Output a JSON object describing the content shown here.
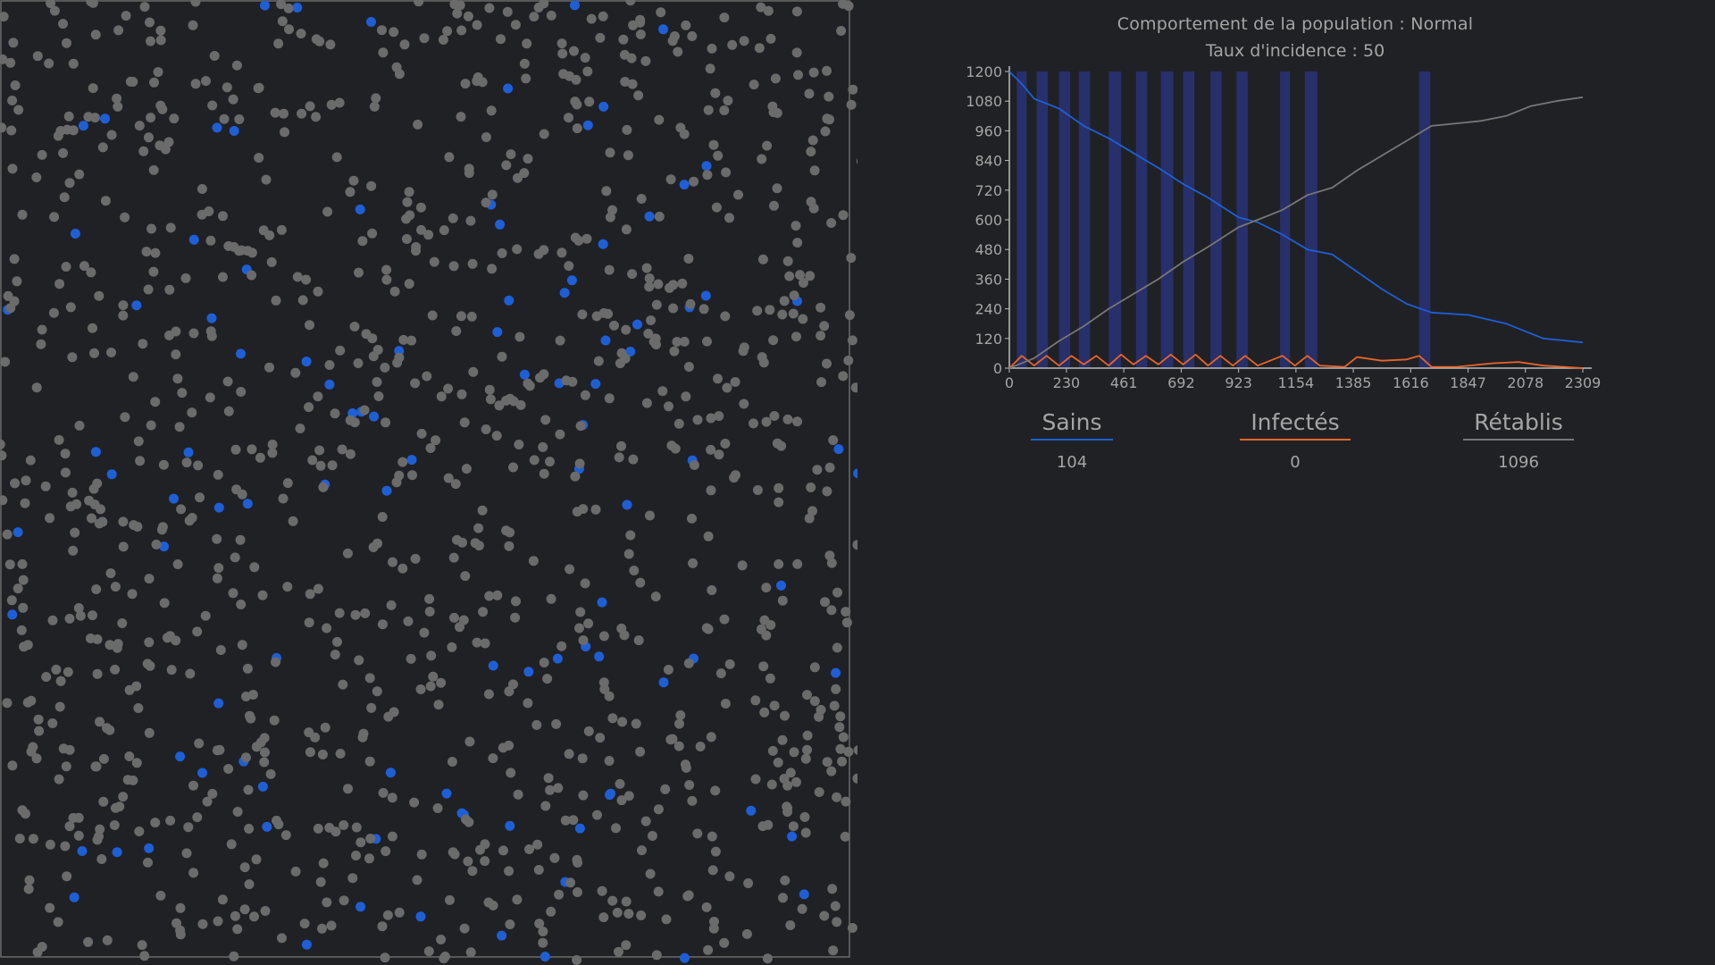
{
  "header": {
    "title": "Comportement de la population : Normal",
    "subtitle": "Taux d'incidence : 50"
  },
  "legend": [
    {
      "label": "Sains",
      "value": "104",
      "color": "#1e5fd6"
    },
    {
      "label": "Infectés",
      "value": "0",
      "color": "#e8642a"
    },
    {
      "label": "Rétablis",
      "value": "1096",
      "color": "#777777"
    }
  ],
  "colors": {
    "background": "#202125",
    "dot_default": "#6b6b6b",
    "dot_healthy": "#1e5fd6",
    "band": "#27306a"
  },
  "simulation": {
    "population_total": 1200,
    "healthy_visible": 104,
    "recovered_visible": 1096
  },
  "chart_data": {
    "type": "line",
    "title": "",
    "xlabel": "",
    "ylabel": "",
    "xlim": [
      0,
      2309
    ],
    "ylim": [
      0,
      1200
    ],
    "x_ticks": [
      "0",
      "230",
      "461",
      "692",
      "923",
      "1154",
      "1385",
      "1616",
      "1847",
      "2078",
      "2309"
    ],
    "y_ticks": [
      "0",
      "120",
      "240",
      "360",
      "480",
      "600",
      "720",
      "840",
      "960",
      "1080",
      "1200"
    ],
    "x_tick_values": [
      0,
      230,
      461,
      692,
      923,
      1154,
      1385,
      1616,
      1847,
      2078,
      2309
    ],
    "y_tick_values": [
      0,
      120,
      240,
      360,
      480,
      600,
      720,
      840,
      960,
      1080,
      1200
    ],
    "bands": [
      [
        30,
        70
      ],
      [
        110,
        155
      ],
      [
        200,
        245
      ],
      [
        280,
        325
      ],
      [
        400,
        450
      ],
      [
        510,
        555
      ],
      [
        610,
        660
      ],
      [
        700,
        745
      ],
      [
        810,
        855
      ],
      [
        915,
        960
      ],
      [
        1090,
        1130
      ],
      [
        1190,
        1240
      ],
      [
        1650,
        1695
      ]
    ],
    "series": [
      {
        "name": "Sains",
        "color": "#1e5fd6",
        "x": [
          0,
          50,
          100,
          200,
          300,
          400,
          500,
          600,
          700,
          800,
          923,
          1000,
          1100,
          1200,
          1300,
          1400,
          1500,
          1600,
          1700,
          1850,
          2000,
          2150,
          2309
        ],
        "values": [
          1200,
          1150,
          1090,
          1050,
          980,
          930,
          870,
          810,
          745,
          690,
          610,
          590,
          540,
          480,
          460,
          390,
          320,
          260,
          225,
          215,
          180,
          120,
          104
        ]
      },
      {
        "name": "Infectés",
        "color": "#e8642a",
        "x": [
          0,
          50,
          100,
          150,
          200,
          250,
          300,
          350,
          400,
          450,
          500,
          550,
          600,
          650,
          700,
          750,
          800,
          850,
          900,
          950,
          1000,
          1100,
          1150,
          1200,
          1250,
          1350,
          1400,
          1500,
          1600,
          1650,
          1700,
          1800,
          1950,
          2050,
          2150,
          2309
        ],
        "values": [
          0,
          50,
          10,
          50,
          10,
          50,
          15,
          50,
          10,
          55,
          15,
          50,
          15,
          55,
          15,
          55,
          10,
          50,
          10,
          50,
          10,
          50,
          10,
          50,
          10,
          5,
          45,
          30,
          35,
          50,
          5,
          5,
          20,
          25,
          10,
          0
        ]
      },
      {
        "name": "Rétablis",
        "color": "#777777",
        "x": [
          0,
          100,
          200,
          300,
          400,
          500,
          600,
          700,
          800,
          923,
          1000,
          1100,
          1200,
          1300,
          1400,
          1500,
          1600,
          1700,
          1800,
          1900,
          2000,
          2100,
          2200,
          2309
        ],
        "values": [
          0,
          40,
          110,
          170,
          240,
          300,
          360,
          430,
          490,
          570,
          600,
          640,
          700,
          730,
          800,
          860,
          920,
          980,
          990,
          1000,
          1020,
          1060,
          1080,
          1096
        ]
      }
    ]
  }
}
